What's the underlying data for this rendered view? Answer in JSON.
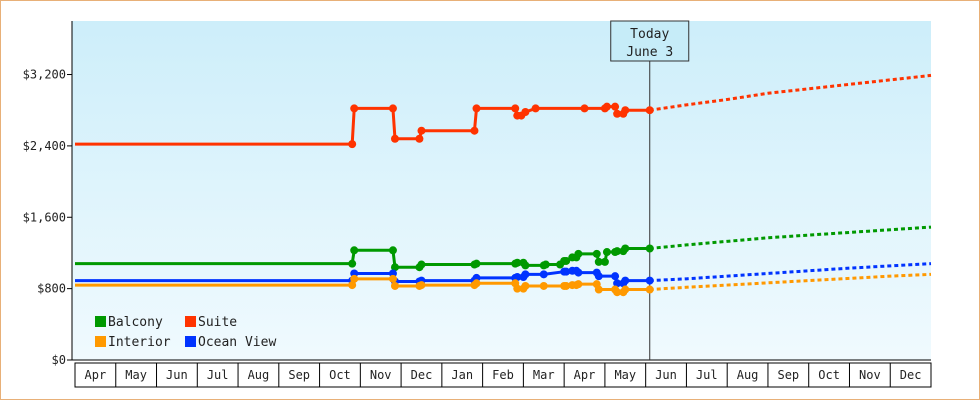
{
  "chart_data": {
    "type": "line",
    "title": "",
    "xlabel": "",
    "ylabel": "",
    "ylim": [
      0,
      3800
    ],
    "yticks": [
      0,
      800,
      1600,
      2400,
      3200
    ],
    "ytick_labels": [
      "$0",
      "$800",
      "$1,600",
      "$2,400",
      "$3,200"
    ],
    "x_range_months": [
      0,
      21
    ],
    "months": [
      "Apr",
      "May",
      "Jun",
      "Jul",
      "Aug",
      "Sep",
      "Oct",
      "Nov",
      "Dec",
      "Jan",
      "Feb",
      "Mar",
      "Apr",
      "May",
      "Jun",
      "Jul",
      "Aug",
      "Sep",
      "Oct",
      "Nov",
      "Dec"
    ],
    "grid": false,
    "background_gradient": [
      "#cdeefa",
      "#f0fafe"
    ],
    "legend_placement": "bottom-left",
    "annotation": {
      "lines": [
        "Today",
        "June 3"
      ],
      "x": 14.1
    },
    "series": [
      {
        "name": "Suite",
        "color": "#ff3300",
        "x": [
          0,
          6.8,
          6.85,
          7.8,
          7.85,
          8.45,
          8.5,
          9.8,
          9.85,
          10.8,
          10.85,
          10.95,
          11.05,
          11.3,
          12.5,
          13.0,
          13.05,
          13.25,
          13.3,
          13.45,
          13.5,
          14.1
        ],
        "y": [
          2420,
          2420,
          2820,
          2820,
          2480,
          2480,
          2570,
          2570,
          2820,
          2820,
          2740,
          2740,
          2780,
          2820,
          2820,
          2820,
          2840,
          2840,
          2760,
          2760,
          2800,
          2800
        ],
        "markers": [
          6.8,
          6.85,
          7.8,
          7.85,
          8.45,
          8.5,
          9.8,
          9.85,
          10.8,
          10.85,
          10.95,
          11.05,
          11.3,
          12.5,
          13.0,
          13.05,
          13.25,
          13.3,
          13.45,
          13.5,
          14.1
        ]
      },
      {
        "name": "Balcony",
        "color": "#009900",
        "x": [
          0,
          6.8,
          6.85,
          7.8,
          7.85,
          8.45,
          8.5,
          9.8,
          9.85,
          10.8,
          10.85,
          11.0,
          11.05,
          11.5,
          11.55,
          11.9,
          12.0,
          12.05,
          12.2,
          12.3,
          12.35,
          12.8,
          12.85,
          13.0,
          13.05,
          13.25,
          13.3,
          13.45,
          13.5,
          14.1
        ],
        "y": [
          1080,
          1080,
          1230,
          1230,
          1040,
          1040,
          1070,
          1070,
          1080,
          1080,
          1090,
          1090,
          1060,
          1060,
          1070,
          1070,
          1110,
          1110,
          1150,
          1150,
          1190,
          1190,
          1100,
          1100,
          1210,
          1210,
          1220,
          1220,
          1250,
          1250
        ],
        "markers": [
          6.8,
          6.85,
          7.8,
          7.85,
          8.45,
          8.5,
          9.8,
          9.85,
          10.8,
          10.85,
          11.0,
          11.05,
          11.5,
          11.55,
          11.9,
          12.0,
          12.05,
          12.2,
          12.3,
          12.35,
          12.8,
          12.85,
          13.0,
          13.05,
          13.25,
          13.3,
          13.45,
          13.5,
          14.1
        ]
      },
      {
        "name": "Ocean View",
        "color": "#0033ff",
        "x": [
          0,
          6.8,
          6.85,
          7.8,
          7.85,
          8.45,
          8.5,
          9.8,
          9.85,
          10.8,
          10.85,
          11.0,
          11.05,
          11.5,
          12.0,
          12.05,
          12.2,
          12.3,
          12.35,
          12.8,
          12.85,
          13.25,
          13.3,
          13.45,
          13.5,
          14.1
        ],
        "y": [
          890,
          890,
          970,
          970,
          880,
          880,
          890,
          890,
          920,
          920,
          930,
          930,
          960,
          960,
          990,
          990,
          1000,
          1000,
          980,
          980,
          940,
          940,
          860,
          860,
          890,
          890
        ],
        "markers": [
          6.8,
          6.85,
          7.8,
          7.85,
          8.45,
          8.5,
          9.8,
          9.85,
          10.8,
          10.85,
          11.0,
          11.05,
          11.5,
          12.0,
          12.05,
          12.2,
          12.3,
          12.35,
          12.8,
          12.85,
          13.25,
          13.3,
          13.45,
          13.5,
          14.1
        ]
      },
      {
        "name": "Interior",
        "color": "#ff9900",
        "x": [
          0,
          6.8,
          6.85,
          7.8,
          7.85,
          8.45,
          8.5,
          9.8,
          9.85,
          10.8,
          10.85,
          11.0,
          11.05,
          11.5,
          12.0,
          12.05,
          12.2,
          12.3,
          12.35,
          12.8,
          12.85,
          13.25,
          13.3,
          13.45,
          13.5,
          14.1
        ],
        "y": [
          840,
          840,
          910,
          910,
          830,
          830,
          840,
          840,
          860,
          860,
          800,
          800,
          830,
          830,
          830,
          830,
          840,
          840,
          850,
          850,
          790,
          790,
          760,
          760,
          790,
          790
        ],
        "markers": [
          6.8,
          6.85,
          7.8,
          7.85,
          8.45,
          8.5,
          9.8,
          9.85,
          10.8,
          10.85,
          11.0,
          11.05,
          11.5,
          12.0,
          12.05,
          12.2,
          12.3,
          12.35,
          12.8,
          12.85,
          13.25,
          13.3,
          13.45,
          13.5,
          14.1
        ]
      }
    ],
    "forecast": [
      {
        "name": "Suite",
        "color": "#ff3300",
        "x": [
          14.1,
          15,
          16,
          17,
          18,
          19,
          20,
          21
        ],
        "y": [
          2800,
          2860,
          2920,
          2990,
          3040,
          3090,
          3140,
          3190
        ]
      },
      {
        "name": "Balcony",
        "color": "#009900",
        "x": [
          14.1,
          15,
          16,
          17,
          18,
          19,
          20,
          21
        ],
        "y": [
          1250,
          1290,
          1330,
          1370,
          1400,
          1430,
          1460,
          1490
        ]
      },
      {
        "name": "Ocean View",
        "color": "#0033ff",
        "x": [
          14.1,
          15,
          16,
          17,
          18,
          19,
          20,
          21
        ],
        "y": [
          890,
          910,
          940,
          970,
          1000,
          1030,
          1055,
          1080
        ]
      },
      {
        "name": "Interior",
        "color": "#ff9900",
        "x": [
          14.1,
          15,
          16,
          17,
          18,
          19,
          20,
          21
        ],
        "y": [
          790,
          815,
          840,
          865,
          890,
          915,
          940,
          960
        ]
      }
    ],
    "legend": [
      {
        "name": "Balcony",
        "color": "#009900"
      },
      {
        "name": "Suite",
        "color": "#ff3300"
      },
      {
        "name": "Interior",
        "color": "#ff9900"
      },
      {
        "name": "Ocean View",
        "color": "#0033ff"
      }
    ]
  }
}
